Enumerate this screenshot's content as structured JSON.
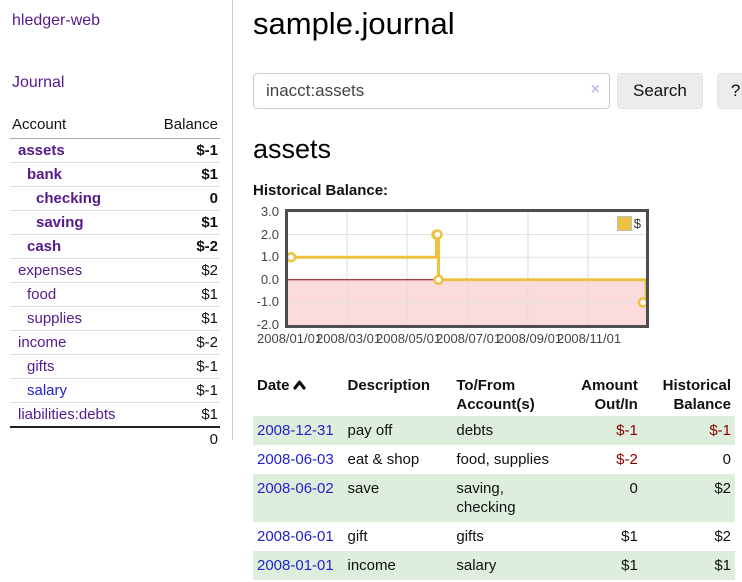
{
  "app": {
    "brand": "hledger-web"
  },
  "sidebar": {
    "journal_link": "Journal",
    "accounts_table": {
      "account_header": "Account",
      "balance_header": "Balance",
      "rows": [
        {
          "name": "assets",
          "balance": "$-1",
          "indent": 1,
          "bold": true,
          "link": "purple",
          "bal": "neg"
        },
        {
          "name": "bank",
          "balance": "$1",
          "indent": 2,
          "bold": true,
          "link": "purple",
          "bal": "pos"
        },
        {
          "name": "checking",
          "balance": "0",
          "indent": 3,
          "bold": true,
          "link": "purple",
          "bal": "pos"
        },
        {
          "name": "saving",
          "balance": "$1",
          "indent": 3,
          "bold": true,
          "link": "purple",
          "bal": "pos"
        },
        {
          "name": "cash",
          "balance": "$-2",
          "indent": 2,
          "bold": true,
          "link": "purple",
          "bal": "neg"
        },
        {
          "name": "expenses",
          "balance": "$2",
          "indent": 1,
          "bold": false,
          "link": "purple",
          "bal": "pos"
        },
        {
          "name": "food",
          "balance": "$1",
          "indent": 2,
          "bold": false,
          "link": "purple",
          "bal": "pos"
        },
        {
          "name": "supplies",
          "balance": "$1",
          "indent": 2,
          "bold": false,
          "link": "purple",
          "bal": "pos"
        },
        {
          "name": "income",
          "balance": "$-2",
          "indent": 1,
          "bold": false,
          "link": "purple",
          "bal": "negdim"
        },
        {
          "name": "gifts",
          "balance": "$-1",
          "indent": 2,
          "bold": false,
          "link": "purple",
          "bal": "negdim"
        },
        {
          "name": "salary",
          "balance": "$-1",
          "indent": 2,
          "bold": false,
          "link": "blue",
          "bal": "negdim"
        },
        {
          "name": "liabilities:debts",
          "balance": "$1",
          "indent": 1,
          "bold": false,
          "link": "purple",
          "bal": "pos"
        }
      ],
      "total": "0"
    }
  },
  "main": {
    "title": "sample.journal",
    "search": {
      "value": "inacct:assets",
      "clear_label": "×",
      "search_button": "Search",
      "help_button": "?"
    },
    "account_heading": "assets",
    "chart_title": "Historical Balance:"
  },
  "chart_data": {
    "type": "line",
    "step": true,
    "title": "Historical Balance:",
    "legend_position": "top-right",
    "grid": true,
    "ylim": [
      -2,
      3
    ],
    "y_ticks": [
      {
        "label": "3.0",
        "value": 3
      },
      {
        "label": "2.0",
        "value": 2
      },
      {
        "label": "1.0",
        "value": 1
      },
      {
        "label": "0.0",
        "value": 0
      },
      {
        "label": "-1.0",
        "value": -1
      },
      {
        "label": "-2.0",
        "value": -2
      }
    ],
    "x_ticks": [
      {
        "label": "2008/01/01",
        "day": 0
      },
      {
        "label": "2008/03/01",
        "day": 60
      },
      {
        "label": "2008/05/01",
        "day": 121
      },
      {
        "label": "2008/07/01",
        "day": 182
      },
      {
        "label": "2008/09/01",
        "day": 244
      },
      {
        "label": "2008/11/01",
        "day": 305
      }
    ],
    "x_max_day": 364,
    "series": [
      {
        "name": "$",
        "color": "#edc240",
        "points": [
          {
            "date": "2008-01-01",
            "day": 0,
            "value": 1
          },
          {
            "date": "2008-06-01",
            "day": 151,
            "value": 2
          },
          {
            "date": "2008-06-02",
            "day": 152,
            "value": 2
          },
          {
            "date": "2008-06-03",
            "day": 153,
            "value": 0
          },
          {
            "date": "2008-12-31",
            "day": 364,
            "value": -1
          }
        ]
      }
    ],
    "negative_region_fill": "#fbdbdb",
    "zero_line_color": "#8b0000"
  },
  "register": {
    "headers": {
      "date": "Date",
      "description": "Description",
      "accounts": "To/From Account(s)",
      "amount": "Amount Out/In",
      "balance": "Historical Balance"
    },
    "rows": [
      {
        "date": "2008-12-31",
        "description": "pay off",
        "accounts": "debts",
        "amount": "$-1",
        "amount_neg": true,
        "balance": "$-1",
        "balance_neg": true
      },
      {
        "date": "2008-06-03",
        "description": "eat & shop",
        "accounts": "food, supplies",
        "amount": "$-2",
        "amount_neg": true,
        "balance": "0",
        "balance_neg": false
      },
      {
        "date": "2008-06-02",
        "description": "save",
        "accounts": "saving, checking",
        "amount": "0",
        "amount_neg": false,
        "balance": "$2",
        "balance_neg": false
      },
      {
        "date": "2008-06-01",
        "description": "gift",
        "accounts": "gifts",
        "amount": "$1",
        "amount_neg": false,
        "balance": "$2",
        "balance_neg": false
      },
      {
        "date": "2008-01-01",
        "description": "income",
        "accounts": "salary",
        "amount": "$1",
        "amount_neg": false,
        "balance": "$1",
        "balance_neg": false
      }
    ]
  },
  "colors": {
    "link_purple": "#551A8B",
    "link_blue": "#2222cc",
    "negative": "#8b0000",
    "negative_dim": "#b86d6d",
    "row_stripe_green": "#ddeedd",
    "chart_line_yellow": "#edc240",
    "chart_negative_fill": "#fbdbdb",
    "chart_zero_line": "#8b0000",
    "chart_border": "#4d4d4d",
    "button_bg": "#ececec",
    "clear_icon": "#c9bcdc"
  }
}
